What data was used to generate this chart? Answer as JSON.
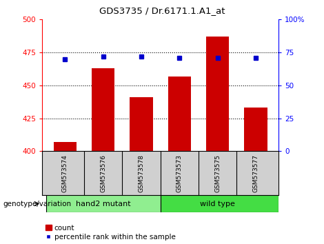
{
  "title": "GDS3735 / Dr.6171.1.A1_at",
  "samples": [
    "GSM573574",
    "GSM573576",
    "GSM573578",
    "GSM573573",
    "GSM573575",
    "GSM573577"
  ],
  "counts": [
    407,
    463,
    441,
    457,
    487,
    433
  ],
  "percentiles": [
    70,
    72,
    72,
    71,
    71,
    71
  ],
  "ylim_left": [
    400,
    500
  ],
  "ylim_right": [
    0,
    100
  ],
  "yticks_left": [
    400,
    425,
    450,
    475,
    500
  ],
  "yticks_right": [
    0,
    25,
    50,
    75,
    100
  ],
  "ytick_labels_right": [
    "0",
    "25",
    "50",
    "75",
    "100%"
  ],
  "bar_color": "#cc0000",
  "dot_color": "#0000cc",
  "group1_label": "hand2 mutant",
  "group2_label": "wild type",
  "group1_color": "#90ee90",
  "group2_color": "#44dd44",
  "group_header": "genotype/variation",
  "legend_count_label": "count",
  "legend_percentile_label": "percentile rank within the sample"
}
